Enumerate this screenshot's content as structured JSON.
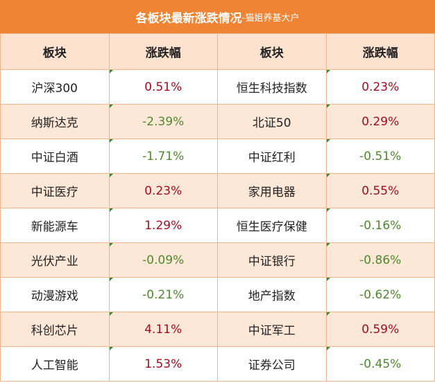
{
  "header": {
    "title": "各板块最新涨跌情况",
    "subtitle": "-猫姐养基大户"
  },
  "table": {
    "columns": [
      "板块",
      "涨跌幅",
      "板块",
      "涨跌幅"
    ],
    "rows": [
      [
        "沪深300",
        "0.51%",
        "恒生科技指数",
        "0.23%"
      ],
      [
        "纳斯达克",
        "-2.39%",
        "北证50",
        "0.29%"
      ],
      [
        "中证白酒",
        "-1.71%",
        "中证红利",
        "-0.51%"
      ],
      [
        "中证医疗",
        "0.23%",
        "家用电器",
        "0.55%"
      ],
      [
        "新能源车",
        "1.29%",
        "恒生医疗保健",
        "-0.16%"
      ],
      [
        "光伏产业",
        "-0.09%",
        "中证银行",
        "-0.86%"
      ],
      [
        "动漫游戏",
        "-0.21%",
        "地产指数",
        "-0.62%"
      ],
      [
        "科创芯片",
        "4.11%",
        "中证军工",
        "0.59%"
      ],
      [
        "人工智能",
        "1.53%",
        "证券公司",
        "-0.45%"
      ]
    ]
  }
}
